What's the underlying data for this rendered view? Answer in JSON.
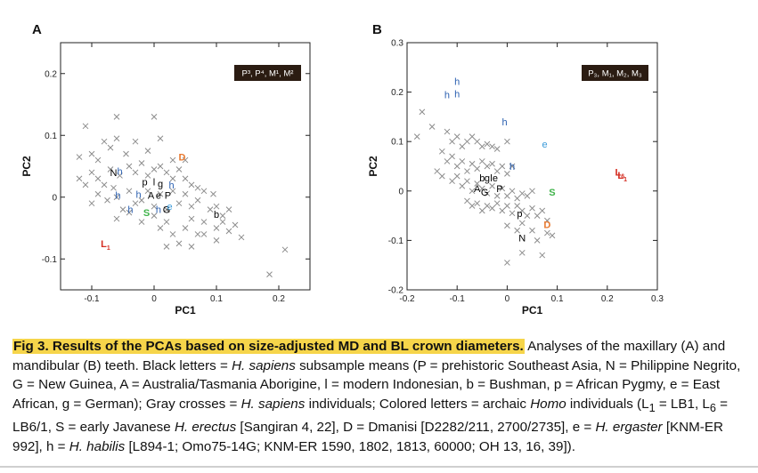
{
  "chart_data": [
    {
      "type": "scatter",
      "panel": "A",
      "legend_box": [
        "P³, P⁴, M¹, M²"
      ],
      "xlabel": "PC1",
      "ylabel": "PC2",
      "xlim": [
        -0.15,
        0.25
      ],
      "ylim": [
        -0.15,
        0.25
      ],
      "xticks": [
        -0.1,
        0,
        0.1,
        0.2
      ],
      "xtick_labels": [
        "-0.1",
        "0",
        "0.1",
        "0.2"
      ],
      "yticks": [
        -0.1,
        0,
        0.1,
        0.2
      ],
      "ytick_labels": [
        "-0.1",
        "0",
        "0.1",
        "0.2"
      ],
      "grid": false,
      "colors": {
        "sapiens_mean": "#000000",
        "cross": "#8c8c8c",
        "habilis": "#2a5fb0",
        "ergaster": "#3a9ad9",
        "erectus": "#3fb34a",
        "dmanisi": "#e8792f",
        "LB": "#d42b20"
      },
      "crosses": [
        [
          -0.11,
          0.115
        ],
        [
          -0.06,
          0.13
        ],
        [
          0,
          0.13
        ],
        [
          -0.12,
          0.065
        ],
        [
          -0.1,
          0.07
        ],
        [
          -0.09,
          0.06
        ],
        [
          -0.08,
          0.09
        ],
        [
          -0.07,
          0.08
        ],
        [
          -0.06,
          0.095
        ],
        [
          -0.045,
          0.07
        ],
        [
          -0.03,
          0.09
        ],
        [
          -0.01,
          0.075
        ],
        [
          0.01,
          0.095
        ],
        [
          0.03,
          0.06
        ],
        [
          0.05,
          0.06
        ],
        [
          -0.12,
          0.03
        ],
        [
          -0.11,
          0.02
        ],
        [
          -0.1,
          0.04
        ],
        [
          -0.09,
          0.03
        ],
        [
          -0.08,
          0.02
        ],
        [
          -0.07,
          0.045
        ],
        [
          -0.065,
          0.015
        ],
        [
          -0.055,
          0.035
        ],
        [
          -0.04,
          0.05
        ],
        [
          -0.03,
          0.04
        ],
        [
          -0.02,
          0.055
        ],
        [
          -0.01,
          0.035
        ],
        [
          0,
          0.045
        ],
        [
          0.01,
          0.05
        ],
        [
          0.02,
          0.04
        ],
        [
          0.03,
          0.03
        ],
        [
          0.04,
          0.045
        ],
        [
          0.05,
          0.03
        ],
        [
          0.06,
          0.02
        ],
        [
          0.07,
          0.015
        ],
        [
          -0.1,
          -0.01
        ],
        [
          -0.09,
          0.005
        ],
        [
          -0.075,
          -0.005
        ],
        [
          -0.06,
          0
        ],
        [
          -0.05,
          -0.02
        ],
        [
          -0.04,
          0.01
        ],
        [
          -0.03,
          -0.01
        ],
        [
          -0.02,
          -0.005
        ],
        [
          -0.01,
          0.01
        ],
        [
          0,
          -0.015
        ],
        [
          0.01,
          0.005
        ],
        [
          0.02,
          -0.02
        ],
        [
          0.03,
          0.01
        ],
        [
          0.04,
          -0.01
        ],
        [
          0.05,
          0.005
        ],
        [
          0.06,
          -0.015
        ],
        [
          0.07,
          -0.005
        ],
        [
          0.08,
          0.01
        ],
        [
          0.09,
          -0.02
        ],
        [
          0.095,
          0.005
        ],
        [
          0.1,
          -0.015
        ],
        [
          0.11,
          -0.03
        ],
        [
          0.12,
          -0.02
        ],
        [
          -0.06,
          -0.035
        ],
        [
          -0.04,
          -0.025
        ],
        [
          -0.02,
          -0.04
        ],
        [
          0,
          -0.03
        ],
        [
          0.01,
          -0.05
        ],
        [
          0.02,
          -0.04
        ],
        [
          0.03,
          -0.06
        ],
        [
          0.05,
          -0.05
        ],
        [
          0.06,
          -0.035
        ],
        [
          0.07,
          -0.06
        ],
        [
          0.08,
          -0.04
        ],
        [
          0.1,
          -0.05
        ],
        [
          0.11,
          -0.04
        ],
        [
          0.12,
          -0.055
        ],
        [
          0.13,
          -0.045
        ],
        [
          0.14,
          -0.065
        ],
        [
          0.02,
          -0.08
        ],
        [
          0.04,
          -0.075
        ],
        [
          0.06,
          -0.08
        ],
        [
          0.08,
          -0.06
        ],
        [
          0.1,
          -0.07
        ],
        [
          0.21,
          -0.085
        ],
        [
          0.185,
          -0.125
        ]
      ],
      "specimen_labels": [
        {
          "text": "N",
          "x": -0.065,
          "y": 0.04,
          "group": "sapiens_mean"
        },
        {
          "text": "p",
          "x": -0.015,
          "y": 0.025,
          "group": "sapiens_mean"
        },
        {
          "text": "l",
          "x": 0.0,
          "y": 0.025,
          "group": "sapiens_mean"
        },
        {
          "text": "g",
          "x": 0.01,
          "y": 0.022,
          "group": "sapiens_mean"
        },
        {
          "text": "A",
          "x": -0.005,
          "y": 0.003,
          "group": "sapiens_mean"
        },
        {
          "text": "e",
          "x": 0.007,
          "y": 0.003,
          "group": "sapiens_mean"
        },
        {
          "text": "P",
          "x": 0.022,
          "y": 0.003,
          "group": "sapiens_mean"
        },
        {
          "text": "G",
          "x": 0.02,
          "y": -0.02,
          "group": "sapiens_mean"
        },
        {
          "text": "b",
          "x": 0.1,
          "y": -0.028,
          "group": "sapiens_mean"
        },
        {
          "text": "h",
          "x": -0.055,
          "y": 0.042,
          "group": "habilis"
        },
        {
          "text": "h",
          "x": -0.058,
          "y": 0.003,
          "group": "habilis"
        },
        {
          "text": "h",
          "x": -0.025,
          "y": 0.005,
          "group": "habilis"
        },
        {
          "text": "h",
          "x": 0.028,
          "y": 0.02,
          "group": "habilis"
        },
        {
          "text": "h",
          "x": -0.038,
          "y": -0.02,
          "group": "habilis"
        },
        {
          "text": "h",
          "x": 0.007,
          "y": -0.02,
          "group": "habilis"
        },
        {
          "text": "e",
          "x": 0.025,
          "y": -0.015,
          "group": "ergaster"
        },
        {
          "text": "S",
          "x": -0.012,
          "y": -0.025,
          "group": "erectus"
        },
        {
          "text": "D",
          "x": 0.045,
          "y": 0.065,
          "group": "dmanisi"
        },
        {
          "text": "L",
          "sub": "1",
          "x": -0.078,
          "y": -0.075,
          "group": "LB"
        }
      ]
    },
    {
      "type": "scatter",
      "panel": "B",
      "legend_box": [
        "P₃, M₁, M₂, M₃"
      ],
      "xlabel": "PC1",
      "ylabel": "PC2",
      "xlim": [
        -0.2,
        0.3
      ],
      "ylim": [
        -0.2,
        0.3
      ],
      "xticks": [
        -0.2,
        -0.1,
        0,
        0.1,
        0.2,
        0.3
      ],
      "xtick_labels": [
        "-0.2",
        "-0.1",
        "0",
        "0.1",
        "0.2",
        "0.3"
      ],
      "yticks": [
        -0.2,
        -0.1,
        0,
        0.1,
        0.2,
        0.3
      ],
      "ytick_labels": [
        "-0.2",
        "-0.1",
        "0",
        "0.1",
        "0.2",
        "0.3"
      ],
      "grid": false,
      "crosses": [
        [
          -0.17,
          0.16
        ],
        [
          -0.18,
          0.11
        ],
        [
          -0.15,
          0.13
        ],
        [
          -0.12,
          0.12
        ],
        [
          -0.11,
          0.1
        ],
        [
          -0.1,
          0.11
        ],
        [
          -0.09,
          0.09
        ],
        [
          -0.08,
          0.1
        ],
        [
          -0.07,
          0.11
        ],
        [
          -0.06,
          0.1
        ],
        [
          -0.05,
          0.09
        ],
        [
          -0.04,
          0.095
        ],
        [
          -0.03,
          0.09
        ],
        [
          -0.02,
          0.085
        ],
        [
          0,
          0.1
        ],
        [
          -0.12,
          0.06
        ],
        [
          -0.11,
          0.07
        ],
        [
          -0.1,
          0.05
        ],
        [
          -0.09,
          0.06
        ],
        [
          -0.08,
          0.04
        ],
        [
          -0.07,
          0.055
        ],
        [
          -0.06,
          0.045
        ],
        [
          -0.05,
          0.06
        ],
        [
          -0.04,
          0.05
        ],
        [
          -0.03,
          0.055
        ],
        [
          -0.02,
          0.04
        ],
        [
          -0.01,
          0.05
        ],
        [
          0,
          0.035
        ],
        [
          0.01,
          0.05
        ],
        [
          -0.11,
          0.02
        ],
        [
          -0.1,
          0.03
        ],
        [
          -0.09,
          0.01
        ],
        [
          -0.08,
          0.02
        ],
        [
          -0.07,
          0.0
        ],
        [
          -0.06,
          0.015
        ],
        [
          -0.05,
          0.005
        ],
        [
          -0.04,
          -0.005
        ],
        [
          -0.03,
          0.01
        ],
        [
          -0.02,
          -0.01
        ],
        [
          -0.01,
          0.005
        ],
        [
          0,
          -0.01
        ],
        [
          0.01,
          0.0
        ],
        [
          0.02,
          -0.015
        ],
        [
          0.03,
          -0.005
        ],
        [
          0.04,
          -0.01
        ],
        [
          0.05,
          0.0
        ],
        [
          -0.08,
          -0.02
        ],
        [
          -0.07,
          -0.03
        ],
        [
          -0.06,
          -0.025
        ],
        [
          -0.05,
          -0.04
        ],
        [
          -0.04,
          -0.03
        ],
        [
          -0.03,
          -0.035
        ],
        [
          -0.02,
          -0.025
        ],
        [
          -0.01,
          -0.04
        ],
        [
          0,
          -0.03
        ],
        [
          0.01,
          -0.045
        ],
        [
          0.02,
          -0.03
        ],
        [
          0.03,
          -0.04
        ],
        [
          0.04,
          -0.05
        ],
        [
          0.05,
          -0.035
        ],
        [
          0.06,
          -0.05
        ],
        [
          0.07,
          -0.04
        ],
        [
          0.08,
          -0.06
        ],
        [
          0.09,
          -0.09
        ],
        [
          0.0,
          -0.07
        ],
        [
          0.02,
          -0.08
        ],
        [
          0.03,
          -0.065
        ],
        [
          0.05,
          -0.08
        ],
        [
          0.06,
          -0.1
        ],
        [
          0.08,
          -0.085
        ],
        [
          0.0,
          -0.145
        ],
        [
          0.03,
          -0.125
        ],
        [
          0.07,
          -0.13
        ],
        [
          -0.13,
          0.08
        ],
        [
          -0.14,
          0.04
        ],
        [
          -0.13,
          0.03
        ]
      ],
      "specimen_labels": [
        {
          "text": "h",
          "x": -0.1,
          "y": 0.222,
          "group": "habilis"
        },
        {
          "text": "h",
          "x": -0.12,
          "y": 0.195,
          "group": "habilis"
        },
        {
          "text": "h",
          "x": -0.1,
          "y": 0.197,
          "group": "habilis"
        },
        {
          "text": "h",
          "x": -0.005,
          "y": 0.14,
          "group": "habilis"
        },
        {
          "text": "h",
          "x": 0.01,
          "y": 0.05,
          "group": "habilis"
        },
        {
          "text": "e",
          "x": 0.075,
          "y": 0.095,
          "group": "ergaster"
        },
        {
          "text": "b",
          "x": -0.05,
          "y": 0.027,
          "group": "sapiens_mean"
        },
        {
          "text": "g",
          "x": -0.04,
          "y": 0.027,
          "group": "sapiens_mean"
        },
        {
          "text": "l",
          "x": -0.032,
          "y": 0.027,
          "group": "sapiens_mean"
        },
        {
          "text": "e",
          "x": -0.024,
          "y": 0.027,
          "group": "sapiens_mean"
        },
        {
          "text": "A",
          "x": -0.06,
          "y": 0.005,
          "group": "sapiens_mean"
        },
        {
          "text": "G",
          "x": -0.045,
          "y": -0.002,
          "group": "sapiens_mean"
        },
        {
          "text": "P",
          "x": -0.015,
          "y": 0.005,
          "group": "sapiens_mean"
        },
        {
          "text": "p",
          "x": 0.025,
          "y": -0.045,
          "group": "sapiens_mean"
        },
        {
          "text": "N",
          "x": 0.03,
          "y": -0.095,
          "group": "sapiens_mean"
        },
        {
          "text": "S",
          "x": 0.09,
          "y": -0.002,
          "group": "erectus"
        },
        {
          "text": "D",
          "x": 0.08,
          "y": -0.068,
          "group": "dmanisi"
        },
        {
          "text": "L",
          "sub": "6",
          "x": 0.225,
          "y": 0.038,
          "group": "LB"
        },
        {
          "text": "L",
          "sub": "1",
          "x": 0.23,
          "y": 0.032,
          "group": "LB"
        }
      ]
    }
  ],
  "caption": {
    "fig_label": "Fig 3.",
    "fig_title": "Results of the PCAs based on size-adjusted MD and BL crown diameters.",
    "t1": " Analyses of the maxillary (A) and mandibular (B) teeth. Black letters = ",
    "sap1": "H. sapiens",
    "t2": " subsample means (P = prehistoric Southeast Asia, N = Philippine Negrito, G = New Guinea, A = Australia/Tasmania Aborigine, l = modern Indonesian, b = Bushman, p = African Pygmy, e = East African, g = German); Gray crosses = ",
    "sap2": "H. sapiens",
    "t3": " individuals; Colored letters = archaic ",
    "homo": "Homo",
    "t4": " individuals (L",
    "l1sub": "1",
    "t5": " = LB1, L",
    "l6sub": "6",
    "t6": " = LB6/1, S = early Javanese ",
    "erectus": "H. erectus",
    "t7": " [Sangiran 4, 22], D = Dmanisi [D2282/211, 2700/2735], e = ",
    "ergaster": "H. ergaster",
    "t8": " [KNM-ER 992], h = ",
    "habilis": "H. habilis",
    "t9": " [L894-1; Omo75-14G; KNM-ER 1590, 1802, 1813, 60000; OH 13, 16, 39])."
  }
}
